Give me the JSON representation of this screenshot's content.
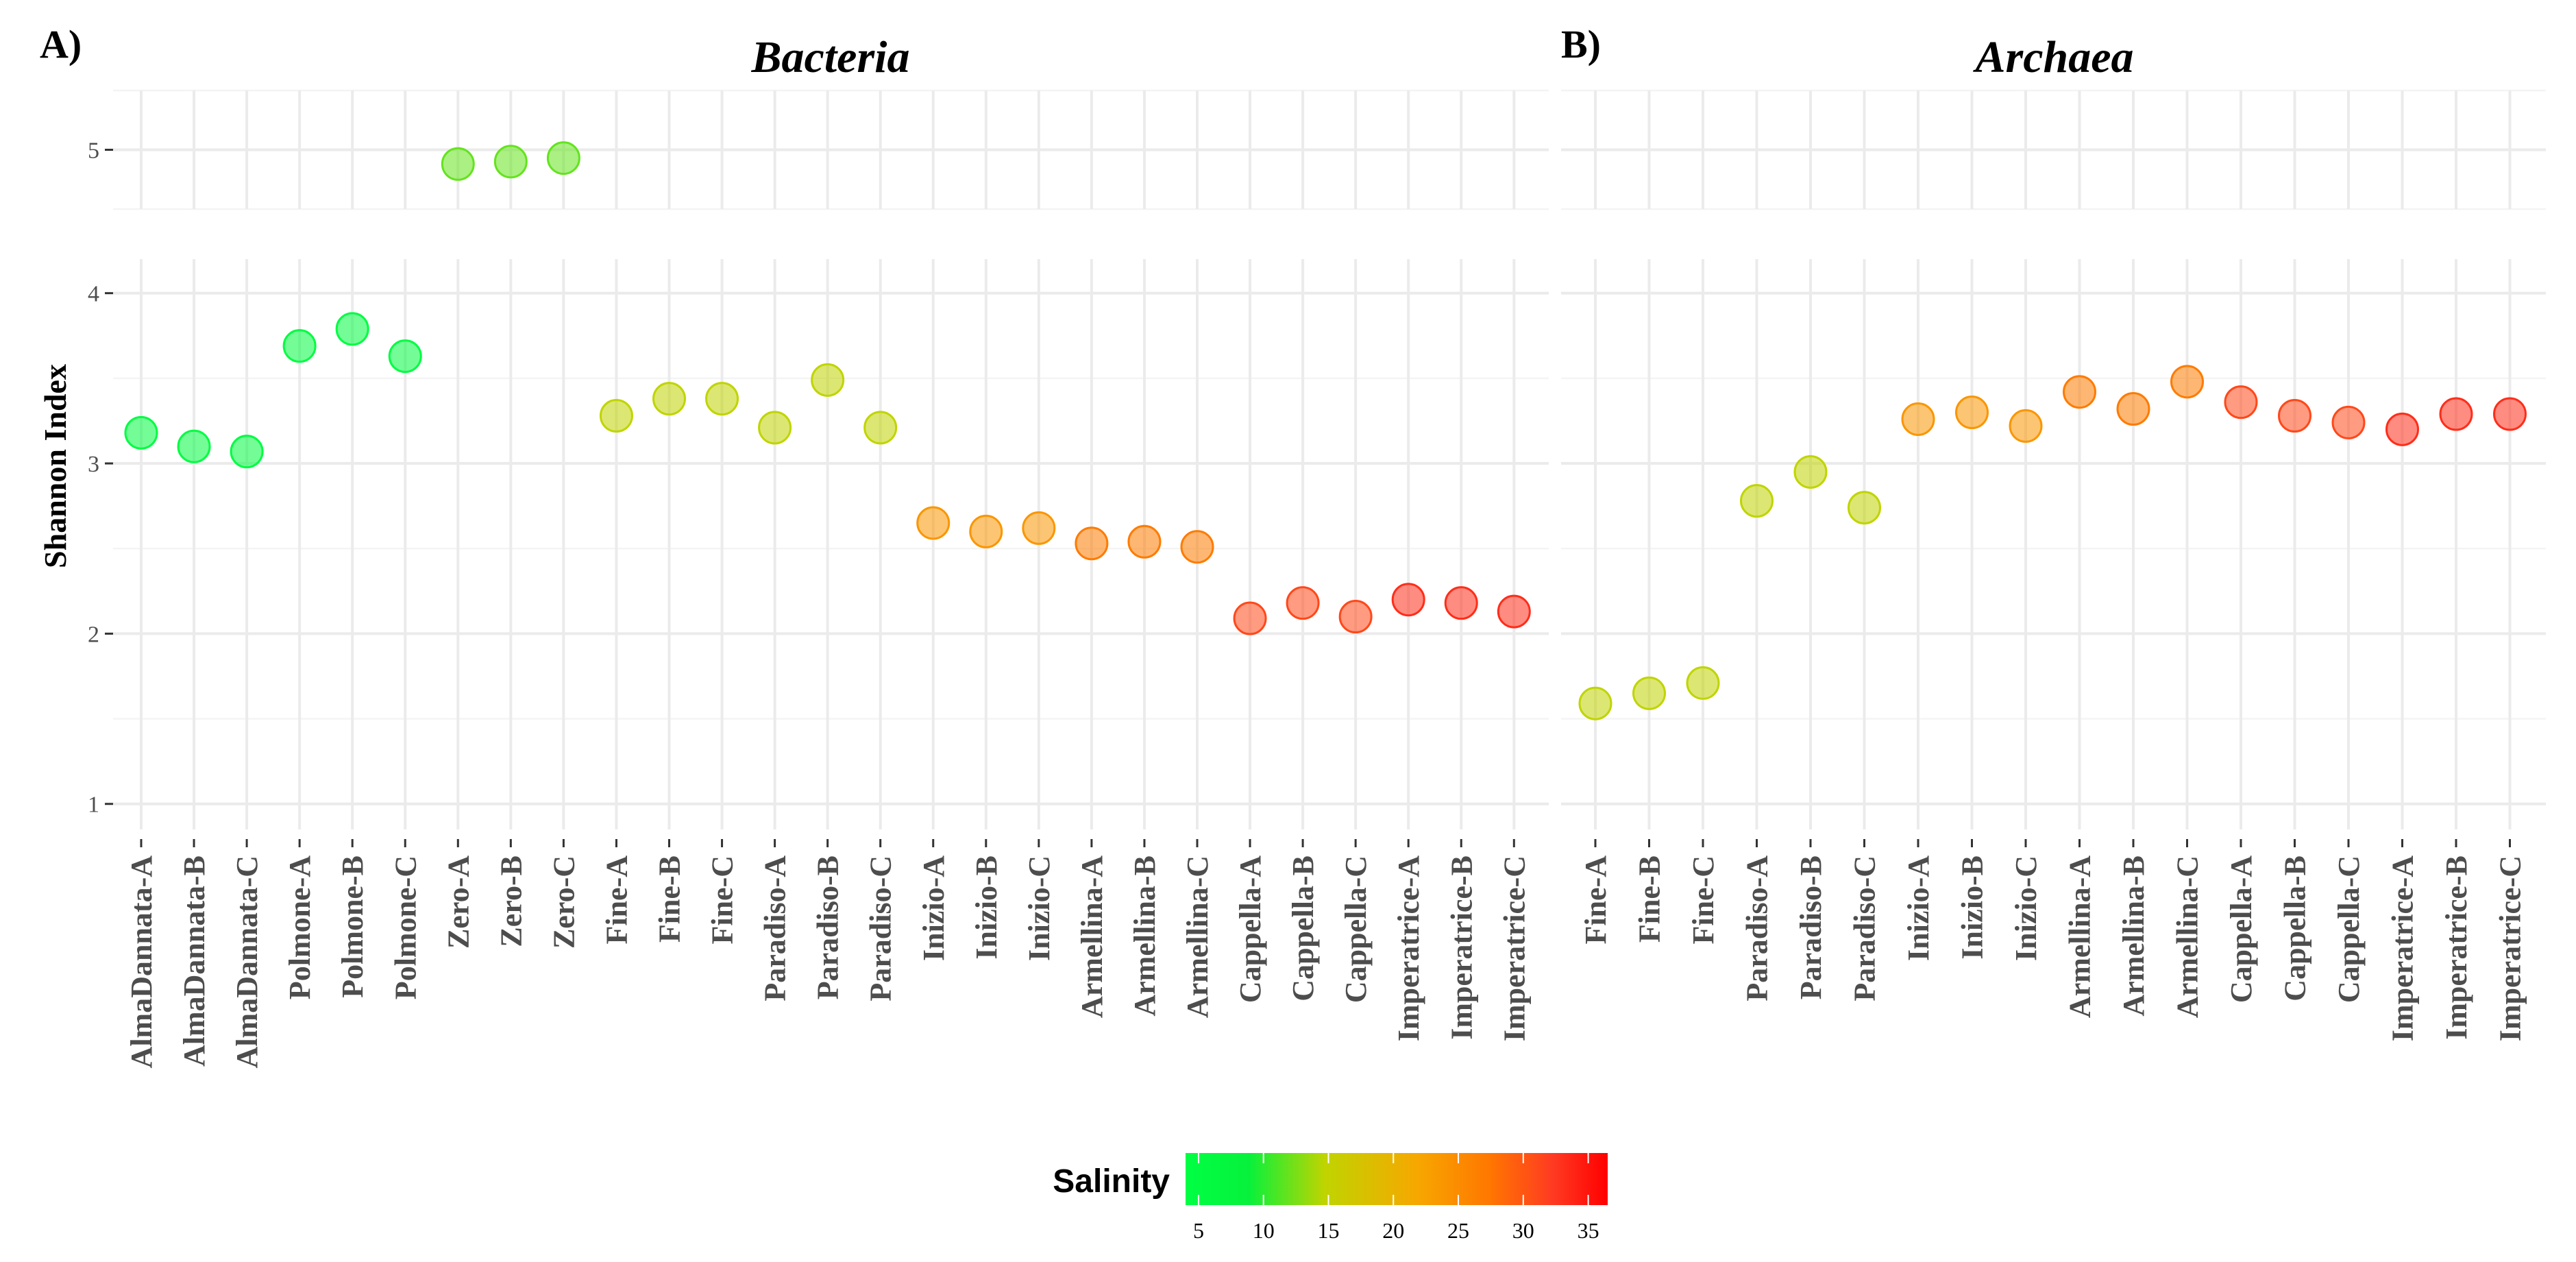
{
  "figure": {
    "panels": [
      {
        "letter": "A)",
        "title": "Bacteria"
      },
      {
        "letter": "B)",
        "title": "Archaea"
      }
    ],
    "ylabel": "Shannon Index"
  },
  "chart_data": [
    {
      "type": "scatter",
      "panel": "A)",
      "title": "Bacteria",
      "ylabel": "Shannon Index",
      "xlabel": "",
      "yticks_lower": [
        1,
        2,
        3,
        4
      ],
      "yticks_upper": [
        5
      ],
      "ylim_lower": [
        0.85,
        4.2
      ],
      "ylim_upper": [
        4.5,
        5.5
      ],
      "grid": true,
      "categories": [
        "AlmaDannata-A",
        "AlmaDannata-B",
        "AlmaDannata-C",
        "Polmone-A",
        "Polmone-B",
        "Polmone-C",
        "Zero-A",
        "Zero-B",
        "Zero-C",
        "Fine-A",
        "Fine-B",
        "Fine-C",
        "Paradiso-A",
        "Paradiso-B",
        "Paradiso-C",
        "Inizio-A",
        "Inizio-B",
        "Inizio-C",
        "Armellina-A",
        "Armellina-B",
        "Armellina-C",
        "Cappella-A",
        "Cappella-B",
        "Cappella-C",
        "Imperatrice-A",
        "Imperatrice-B",
        "Imperatrice-C"
      ],
      "values": [
        3.18,
        3.1,
        3.07,
        3.69,
        3.79,
        3.63,
        4.88,
        4.9,
        4.93,
        3.28,
        3.38,
        3.38,
        3.21,
        3.49,
        3.21,
        2.65,
        2.6,
        2.62,
        2.53,
        2.54,
        2.51,
        2.09,
        2.18,
        2.1,
        2.2,
        2.18,
        2.13
      ],
      "salinity": [
        5,
        5,
        5,
        5,
        5,
        5,
        12,
        12,
        12,
        15,
        15,
        15,
        15,
        15,
        15,
        24,
        24,
        24,
        27,
        27,
        27,
        31,
        31,
        31,
        33,
        33,
        33
      ]
    },
    {
      "type": "scatter",
      "panel": "B)",
      "title": "Archaea",
      "ylabel": "Shannon Index",
      "xlabel": "",
      "ylim_lower": [
        0.85,
        4.2
      ],
      "ylim_upper": [
        4.5,
        5.5
      ],
      "grid": true,
      "categories": [
        "Fine-A",
        "Fine-B",
        "Fine-C",
        "Paradiso-A",
        "Paradiso-B",
        "Paradiso-C",
        "Inizio-A",
        "Inizio-B",
        "Inizio-C",
        "Armellina-A",
        "Armellina-B",
        "Armellina-C",
        "Cappella-A",
        "Cappella-B",
        "Cappella-C",
        "Imperatrice-A",
        "Imperatrice-B",
        "Imperatrice-C"
      ],
      "values": [
        1.59,
        1.65,
        1.71,
        2.78,
        2.95,
        2.74,
        3.26,
        3.3,
        3.22,
        3.42,
        3.32,
        3.48,
        3.36,
        3.28,
        3.24,
        3.2,
        3.29,
        3.29
      ],
      "salinity": [
        15,
        15,
        15,
        15,
        15,
        15,
        24,
        24,
        24,
        27,
        27,
        27,
        31,
        31,
        31,
        33,
        33,
        33
      ]
    }
  ],
  "legend": {
    "title": "Salinity",
    "ticks": [
      5,
      10,
      15,
      20,
      25,
      30,
      35
    ],
    "range": [
      4,
      36.5
    ],
    "colors": [
      "#00ff44",
      "#07f13b",
      "#c0d400",
      "#f7a700",
      "#ff7700",
      "#ff3a22",
      "#ff0000"
    ]
  }
}
